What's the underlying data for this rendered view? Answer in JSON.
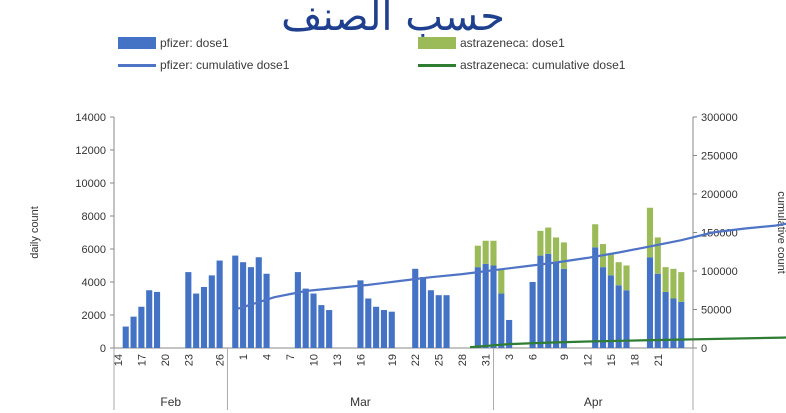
{
  "title": "حسب الصنف",
  "legend": [
    {
      "label": "pfizer: dose1",
      "kind": "bar",
      "color": "#4472c4"
    },
    {
      "label": "astrazeneca: dose1",
      "kind": "bar",
      "color": "#9bbb59"
    },
    {
      "label": "pfizer: cumulative dose1",
      "kind": "line",
      "color": "#4f74c6"
    },
    {
      "label": "astrazeneca: cumulative dose1",
      "kind": "line",
      "color": "#2e7d32"
    }
  ],
  "chart_data": {
    "type": "bar",
    "title": "حسب الصنف",
    "ylabel": "daily count",
    "y2label": "cumulative count",
    "ylim": [
      0,
      14000
    ],
    "y2lim": [
      0,
      300000
    ],
    "yticks": [
      0,
      2000,
      4000,
      6000,
      8000,
      10000,
      12000,
      14000
    ],
    "y2ticks": [
      0,
      50000,
      100000,
      150000,
      200000,
      250000,
      300000
    ],
    "x_tick_labels": [
      "14",
      "17",
      "20",
      "23",
      "26",
      "1",
      "4",
      "7",
      "10",
      "13",
      "16",
      "19",
      "22",
      "25",
      "28",
      "31",
      "3",
      "6",
      "9",
      "12",
      "15",
      "18",
      "21"
    ],
    "months": [
      "Feb",
      "Mar",
      "Apr"
    ],
    "series": [
      {
        "name": "pfizer: dose1",
        "type": "bar",
        "values": [
          0,
          1300,
          1900,
          2500,
          3500,
          3400,
          0,
          0,
          0,
          4600,
          3300,
          3700,
          4400,
          5300,
          0,
          5600,
          5200,
          4900,
          5500,
          4500,
          0,
          0,
          0,
          4600,
          3600,
          3300,
          2600,
          2300,
          0,
          0,
          0,
          4100,
          3000,
          2500,
          2300,
          2200,
          0,
          0,
          4800,
          4300,
          3500,
          3200,
          3200,
          0,
          0,
          0,
          4900,
          5100,
          5000,
          3300,
          1700,
          0,
          0,
          4000,
          5600,
          5700,
          5200,
          4800,
          0,
          0,
          0,
          6100,
          4900,
          4400,
          3800,
          3500,
          0,
          0,
          5500,
          4500,
          3400,
          3000,
          2800
        ]
      },
      {
        "name": "astrazeneca: dose1",
        "type": "bar",
        "values": [
          0,
          0,
          0,
          0,
          0,
          0,
          0,
          0,
          0,
          0,
          0,
          0,
          0,
          0,
          0,
          0,
          0,
          0,
          0,
          0,
          0,
          0,
          0,
          0,
          0,
          0,
          0,
          0,
          0,
          0,
          0,
          0,
          0,
          0,
          0,
          0,
          0,
          0,
          0,
          0,
          0,
          0,
          0,
          0,
          0,
          0,
          1300,
          1400,
          1500,
          1500,
          0,
          0,
          0,
          0,
          1500,
          1600,
          1500,
          1600,
          0,
          0,
          0,
          1400,
          1400,
          1300,
          1400,
          1500,
          0,
          0,
          3000,
          2200,
          1500,
          1800,
          1800
        ]
      },
      {
        "name": "pfizer: cumulative dose1",
        "type": "line",
        "axis": "right",
        "points": [
          [
            15,
            50000
          ],
          [
            20,
            66000
          ],
          [
            24,
            74000
          ],
          [
            28,
            78000
          ],
          [
            32,
            82000
          ],
          [
            36,
            87000
          ],
          [
            40,
            92000
          ],
          [
            44,
            96000
          ],
          [
            48,
            101000
          ],
          [
            52,
            106000
          ],
          [
            56,
            111000
          ],
          [
            60,
            117000
          ],
          [
            64,
            124000
          ],
          [
            68,
            132000
          ],
          [
            72,
            140000
          ],
          [
            76,
            150000
          ],
          [
            80,
            155000
          ],
          [
            84,
            159000
          ],
          [
            88,
            166000
          ],
          [
            92,
            174000
          ],
          [
            96,
            182000
          ],
          [
            100,
            188000
          ],
          [
            104,
            194000
          ],
          [
            108,
            200000
          ],
          [
            112,
            206000
          ],
          [
            116,
            212000
          ],
          [
            120,
            218000
          ],
          [
            124,
            225000
          ]
        ]
      },
      {
        "name": "astrazeneca: cumulative dose1",
        "type": "line",
        "axis": "right",
        "points": [
          [
            45,
            1000
          ],
          [
            50,
            5000
          ],
          [
            55,
            7000
          ],
          [
            60,
            8500
          ],
          [
            65,
            9500
          ],
          [
            70,
            10500
          ],
          [
            75,
            11500
          ],
          [
            80,
            12500
          ],
          [
            85,
            13500
          ],
          [
            90,
            15000
          ],
          [
            95,
            17000
          ],
          [
            100,
            19000
          ],
          [
            105,
            22000
          ],
          [
            109,
            27000
          ]
        ]
      }
    ]
  }
}
